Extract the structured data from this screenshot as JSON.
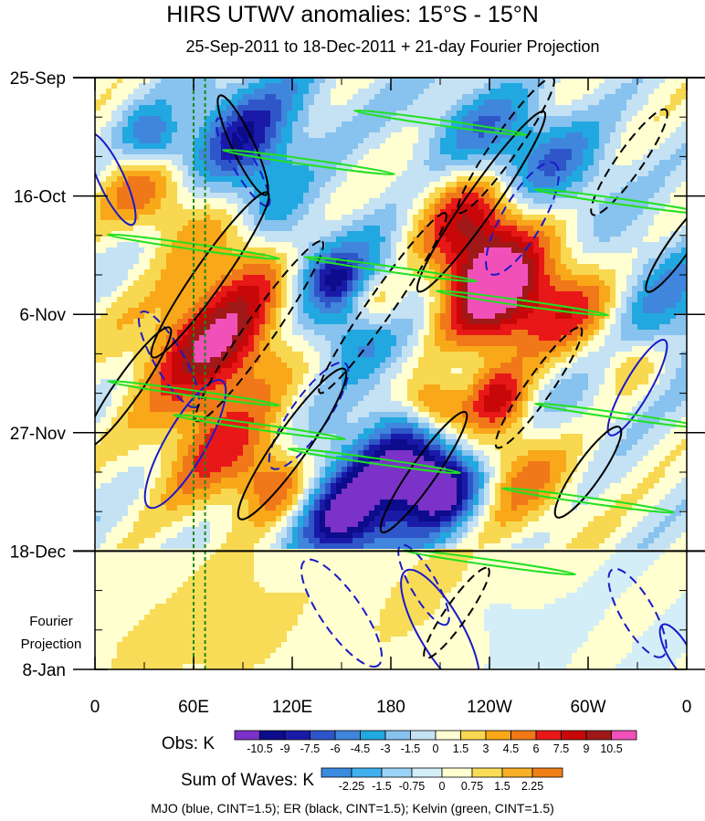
{
  "title": "HIRS UTWV anomalies: 15°S - 15°N",
  "subtitle": "25-Sep-2011 to 18-Dec-2011 + 21-day Fourier Projection",
  "footer": "MJO (blue, CINT=1.5); ER (black, CINT=1.5); Kelvin (green, CINT=1.5)",
  "chart_data": {
    "type": "heatmap",
    "xlabel": "",
    "ylabel": "",
    "x_ticks": [
      "0",
      "60E",
      "120E",
      "180",
      "120W",
      "60W",
      "0"
    ],
    "x_tick_values": [
      0,
      60,
      120,
      180,
      240,
      300,
      360
    ],
    "y_ticks": [
      "25-Sep",
      "16-Oct",
      "6-Nov",
      "27-Nov",
      "18-Dec",
      "8-Jan"
    ],
    "y_tick_values": [
      0,
      21,
      42,
      63,
      84,
      105
    ],
    "observation_end": "18-Dec",
    "projection_label_line1": "Fourier",
    "projection_label_line2": "Projection",
    "reference_longitudes": [
      60,
      67
    ],
    "obs_colorbar": {
      "label": "Obs: K",
      "levels": [
        "-10.5",
        "-9",
        "-7.5",
        "-6",
        "-4.5",
        "-3",
        "-1.5",
        "0",
        "1.5",
        "3",
        "4.5",
        "6",
        "7.5",
        "9",
        "10.5"
      ],
      "colors": [
        "#7a32c8",
        "#0c0c8c",
        "#1a1aa8",
        "#2f56c8",
        "#3f86dc",
        "#22a8e0",
        "#88c2ee",
        "#c4e2f4",
        "#ffffd2",
        "#f8d850",
        "#f8a818",
        "#f07818",
        "#e81818",
        "#c80808",
        "#a01818",
        "#f050b8"
      ]
    },
    "waves_colorbar": {
      "label": "Sum of Waves: K",
      "levels": [
        "-2.25",
        "-1.5",
        "-0.75",
        "0",
        "0.75",
        "1.5",
        "2.25"
      ],
      "colors": [
        "#3a8ce0",
        "#40b0f0",
        "#9ad4f6",
        "#d4eef8",
        "#ffffd0",
        "#f8dc58",
        "#f8b028",
        "#f08018"
      ]
    }
  }
}
